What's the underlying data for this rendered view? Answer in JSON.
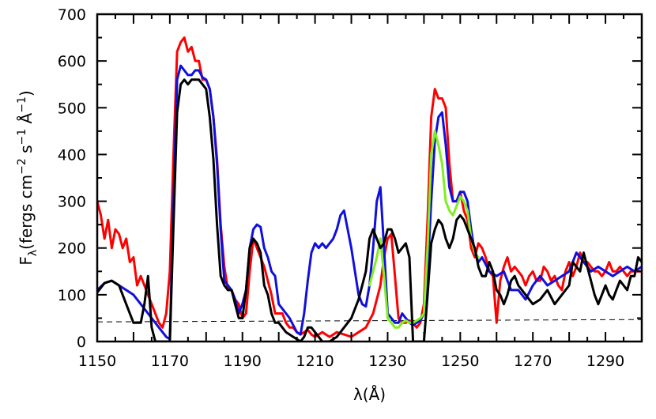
{
  "chart_data": {
    "type": "line",
    "title": "",
    "xlabel": "λ(Å)",
    "ylabel": "Fλ(fergs cm⁻² s⁻¹ Å⁻¹)",
    "ylabel_parts": {
      "main": "F",
      "sub": "λ",
      "rest1": "(fergs cm",
      "sup1": "−2",
      "rest2": " s",
      "sup2": "−1",
      "rest3": " Å",
      "sup3": "−1",
      "close": ")"
    },
    "xlim": [
      1150,
      1300
    ],
    "ylim": [
      0,
      700
    ],
    "xticks": [
      1150,
      1170,
      1190,
      1210,
      1230,
      1250,
      1270,
      1290
    ],
    "yticks": [
      0,
      100,
      200,
      300,
      400,
      500,
      600,
      700
    ],
    "grid": false,
    "legend": "none",
    "series": [
      {
        "color": "#ff0000",
        "x": [
          1150,
          1151,
          1152,
          1153,
          1154,
          1155,
          1156,
          1157,
          1158,
          1159,
          1160,
          1161,
          1162,
          1163,
          1164,
          1165,
          1166,
          1167,
          1168,
          1169,
          1170,
          1171,
          1172,
          1173,
          1174,
          1175,
          1176,
          1177,
          1178,
          1179,
          1180,
          1181,
          1182,
          1183,
          1184,
          1185,
          1186,
          1187,
          1188,
          1189,
          1190,
          1191,
          1192,
          1193,
          1194,
          1195,
          1196,
          1197,
          1198,
          1199,
          1200,
          1201,
          1202,
          1203,
          1204,
          1205,
          1206,
          1207,
          1208,
          1209,
          1210,
          1212,
          1214,
          1216,
          1218,
          1220,
          1222,
          1224,
          1226,
          1228,
          1229,
          1230,
          1231,
          1232,
          1233,
          1234,
          1235,
          1236,
          1237,
          1238,
          1239,
          1240,
          1241,
          1242,
          1243,
          1244,
          1245,
          1246,
          1247,
          1248,
          1249,
          1250,
          1251,
          1252,
          1253,
          1254,
          1255,
          1256,
          1257,
          1258,
          1259,
          1260,
          1261,
          1262,
          1263,
          1264,
          1265,
          1266,
          1267,
          1268,
          1269,
          1270,
          1271,
          1272,
          1273,
          1274,
          1275,
          1276,
          1277,
          1278,
          1279,
          1280,
          1281,
          1282,
          1283,
          1284,
          1285,
          1286,
          1287,
          1288,
          1289,
          1290,
          1291,
          1292,
          1293,
          1294,
          1295,
          1296,
          1297,
          1298,
          1299,
          1300
        ],
        "y": [
          300,
          270,
          220,
          260,
          200,
          240,
          230,
          200,
          220,
          170,
          180,
          120,
          140,
          120,
          100,
          80,
          60,
          40,
          30,
          60,
          150,
          400,
          620,
          640,
          650,
          620,
          630,
          600,
          600,
          560,
          560,
          540,
          480,
          390,
          250,
          160,
          110,
          110,
          90,
          80,
          50,
          60,
          150,
          220,
          200,
          180,
          160,
          130,
          100,
          60,
          60,
          60,
          40,
          30,
          30,
          20,
          15,
          20,
          25,
          15,
          10,
          20,
          10,
          20,
          15,
          10,
          20,
          30,
          60,
          120,
          180,
          220,
          230,
          140,
          50,
          40,
          40,
          45,
          40,
          30,
          40,
          80,
          260,
          480,
          540,
          520,
          520,
          500,
          380,
          300,
          300,
          320,
          280,
          260,
          200,
          180,
          210,
          200,
          180,
          150,
          140,
          40,
          130,
          160,
          180,
          150,
          160,
          150,
          140,
          120,
          140,
          150,
          130,
          130,
          160,
          150,
          130,
          140,
          120,
          110,
          150,
          170,
          140,
          160,
          190,
          170,
          170,
          160,
          150,
          150,
          140,
          150,
          170,
          150,
          150,
          160,
          150,
          140,
          150,
          150,
          150,
          150
        ]
      },
      {
        "color": "#1010dd",
        "x": [
          1150,
          1152,
          1154,
          1156,
          1158,
          1160,
          1162,
          1164,
          1165,
          1166,
          1167,
          1168,
          1169,
          1170,
          1171,
          1172,
          1173,
          1174,
          1175,
          1176,
          1177,
          1178,
          1179,
          1180,
          1181,
          1182,
          1183,
          1184,
          1185,
          1186,
          1187,
          1188,
          1189,
          1190,
          1191,
          1192,
          1193,
          1194,
          1195,
          1196,
          1197,
          1198,
          1199,
          1200,
          1201,
          1202,
          1203,
          1204,
          1205,
          1206,
          1207,
          1208,
          1209,
          1210,
          1211,
          1212,
          1213,
          1214,
          1215,
          1216,
          1217,
          1218,
          1219,
          1220,
          1221,
          1222,
          1223,
          1224,
          1225,
          1226,
          1227,
          1228,
          1229,
          1230,
          1231,
          1232,
          1233,
          1234,
          1235,
          1236,
          1237,
          1238,
          1239,
          1240,
          1241,
          1242,
          1243,
          1244,
          1245,
          1246,
          1247,
          1248,
          1249,
          1250,
          1251,
          1252,
          1253,
          1254,
          1255,
          1256,
          1258,
          1260,
          1262,
          1264,
          1266,
          1268,
          1270,
          1272,
          1274,
          1276,
          1278,
          1280,
          1282,
          1284,
          1286,
          1288,
          1290,
          1292,
          1294,
          1296,
          1298,
          1300
        ],
        "y": [
          110,
          125,
          130,
          120,
          110,
          100,
          80,
          60,
          50,
          40,
          30,
          20,
          10,
          5,
          300,
          560,
          590,
          580,
          570,
          570,
          580,
          580,
          565,
          560,
          540,
          480,
          380,
          240,
          130,
          120,
          110,
          90,
          60,
          80,
          110,
          200,
          240,
          250,
          245,
          200,
          180,
          150,
          140,
          80,
          70,
          60,
          50,
          35,
          20,
          15,
          60,
          130,
          190,
          210,
          200,
          210,
          200,
          210,
          220,
          240,
          270,
          280,
          240,
          200,
          150,
          100,
          80,
          75,
          120,
          200,
          300,
          330,
          200,
          60,
          50,
          40,
          40,
          60,
          50,
          40,
          35,
          40,
          45,
          60,
          150,
          300,
          430,
          480,
          490,
          420,
          330,
          300,
          300,
          320,
          320,
          300,
          240,
          190,
          170,
          180,
          150,
          140,
          150,
          110,
          110,
          90,
          120,
          140,
          120,
          130,
          140,
          150,
          190,
          170,
          150,
          160,
          150,
          140,
          150,
          160,
          150,
          160
        ]
      },
      {
        "color": "#80ee20",
        "x": [
          1225,
          1226,
          1227,
          1228,
          1229,
          1230,
          1231,
          1232,
          1233,
          1234,
          1235,
          1236,
          1237,
          1238,
          1239,
          1240,
          1241,
          1242,
          1243,
          1244,
          1245,
          1246,
          1247,
          1248,
          1249,
          1250,
          1251,
          1252,
          1253,
          1254,
          1255
        ],
        "y": [
          120,
          150,
          180,
          220,
          140,
          50,
          40,
          30,
          30,
          40,
          45,
          40,
          40,
          45,
          50,
          60,
          200,
          400,
          450,
          420,
          380,
          300,
          280,
          270,
          290,
          310,
          300,
          280,
          220,
          190,
          180
        ]
      },
      {
        "color": "#000000",
        "x": [
          1150,
          1152,
          1154,
          1156,
          1158,
          1160,
          1162,
          1163,
          1164,
          1165,
          1166,
          1167,
          1168,
          1169,
          1170,
          1171,
          1172,
          1173,
          1174,
          1175,
          1176,
          1177,
          1178,
          1179,
          1180,
          1181,
          1182,
          1183,
          1184,
          1185,
          1186,
          1187,
          1188,
          1189,
          1190,
          1191,
          1192,
          1193,
          1194,
          1195,
          1196,
          1197,
          1198,
          1199,
          1200,
          1201,
          1202,
          1203,
          1204,
          1205,
          1206,
          1207,
          1208,
          1209,
          1210,
          1211,
          1212,
          1214,
          1216,
          1218,
          1220,
          1222,
          1224,
          1225,
          1226,
          1227,
          1228,
          1229,
          1230,
          1231,
          1232,
          1233,
          1234,
          1235,
          1236,
          1237,
          1238,
          1239,
          1240,
          1241,
          1242,
          1243,
          1244,
          1245,
          1246,
          1247,
          1248,
          1249,
          1250,
          1251,
          1252,
          1253,
          1254,
          1255,
          1256,
          1257,
          1258,
          1259,
          1260,
          1261,
          1262,
          1263,
          1264,
          1265,
          1266,
          1267,
          1268,
          1269,
          1270,
          1272,
          1274,
          1276,
          1278,
          1280,
          1281,
          1282,
          1283,
          1284,
          1285,
          1286,
          1287,
          1288,
          1289,
          1290,
          1291,
          1292,
          1293,
          1294,
          1295,
          1296,
          1297,
          1298,
          1299,
          1300
        ],
        "y": [
          105,
          125,
          130,
          120,
          80,
          40,
          40,
          80,
          140,
          30,
          0,
          0,
          0,
          0,
          0,
          250,
          490,
          550,
          560,
          550,
          560,
          560,
          560,
          550,
          540,
          480,
          390,
          250,
          140,
          120,
          110,
          110,
          80,
          50,
          50,
          110,
          200,
          220,
          210,
          190,
          120,
          100,
          60,
          40,
          40,
          30,
          20,
          15,
          10,
          5,
          0,
          10,
          30,
          30,
          20,
          10,
          0,
          0,
          10,
          30,
          50,
          90,
          150,
          220,
          240,
          220,
          200,
          210,
          240,
          240,
          220,
          190,
          200,
          210,
          180,
          0,
          0,
          0,
          0,
          100,
          210,
          240,
          260,
          250,
          220,
          200,
          220,
          260,
          270,
          260,
          240,
          220,
          200,
          160,
          140,
          140,
          170,
          150,
          110,
          100,
          80,
          100,
          130,
          140,
          120,
          110,
          100,
          90,
          80,
          90,
          110,
          80,
          100,
          120,
          170,
          160,
          150,
          190,
          160,
          130,
          100,
          80,
          100,
          120,
          100,
          90,
          110,
          130,
          120,
          110,
          140,
          140,
          180,
          170
        ]
      }
    ],
    "reference_line": {
      "style": "dashed",
      "x": [
        1150,
        1300
      ],
      "y": [
        42,
        47
      ]
    }
  }
}
